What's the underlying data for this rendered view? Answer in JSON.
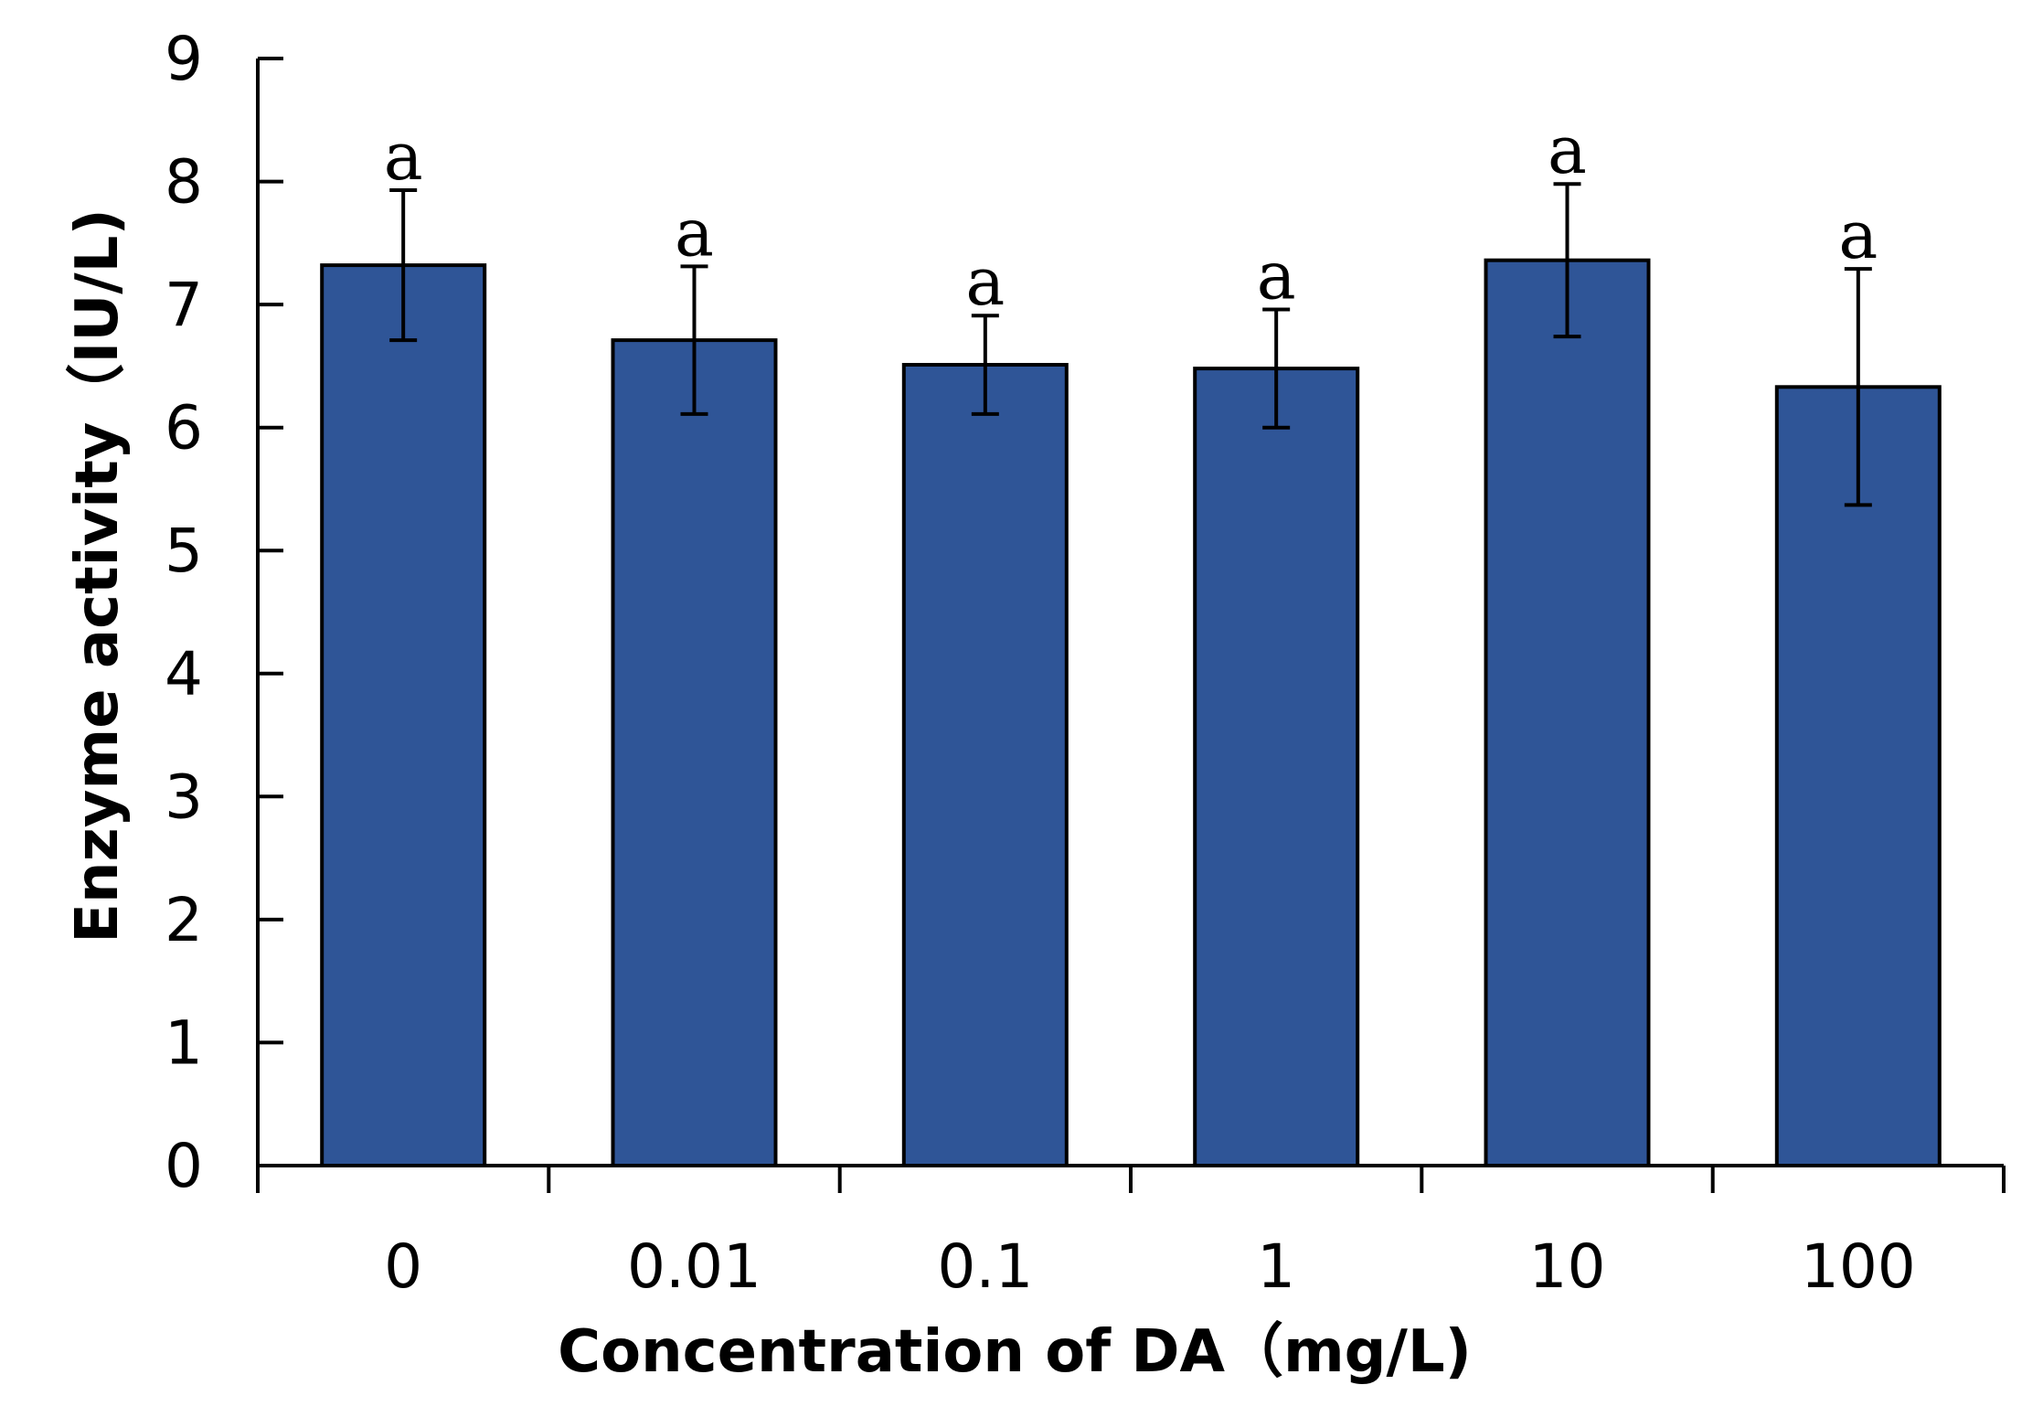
{
  "chart_data": {
    "type": "bar",
    "categories": [
      "0",
      "0.01",
      "0.1",
      "1",
      "10",
      "100"
    ],
    "values": [
      7.32,
      6.71,
      6.51,
      6.48,
      7.36,
      6.33
    ],
    "errors": [
      0.61,
      0.6,
      0.4,
      0.48,
      0.62,
      0.96
    ],
    "significance": [
      "a",
      "a",
      "a",
      "a",
      "a",
      "a"
    ],
    "xlabel": "Concentration of DA（mg/L)",
    "ylabel": "Enzyme activity（IU/L)",
    "ylim": [
      0,
      9
    ],
    "yticks": [
      "0",
      "1",
      "2",
      "3",
      "4",
      "5",
      "6",
      "7",
      "8",
      "9"
    ],
    "bar_color": "#2F5597",
    "bar_edge_color": "#000000",
    "grid": false,
    "legend": "none"
  }
}
